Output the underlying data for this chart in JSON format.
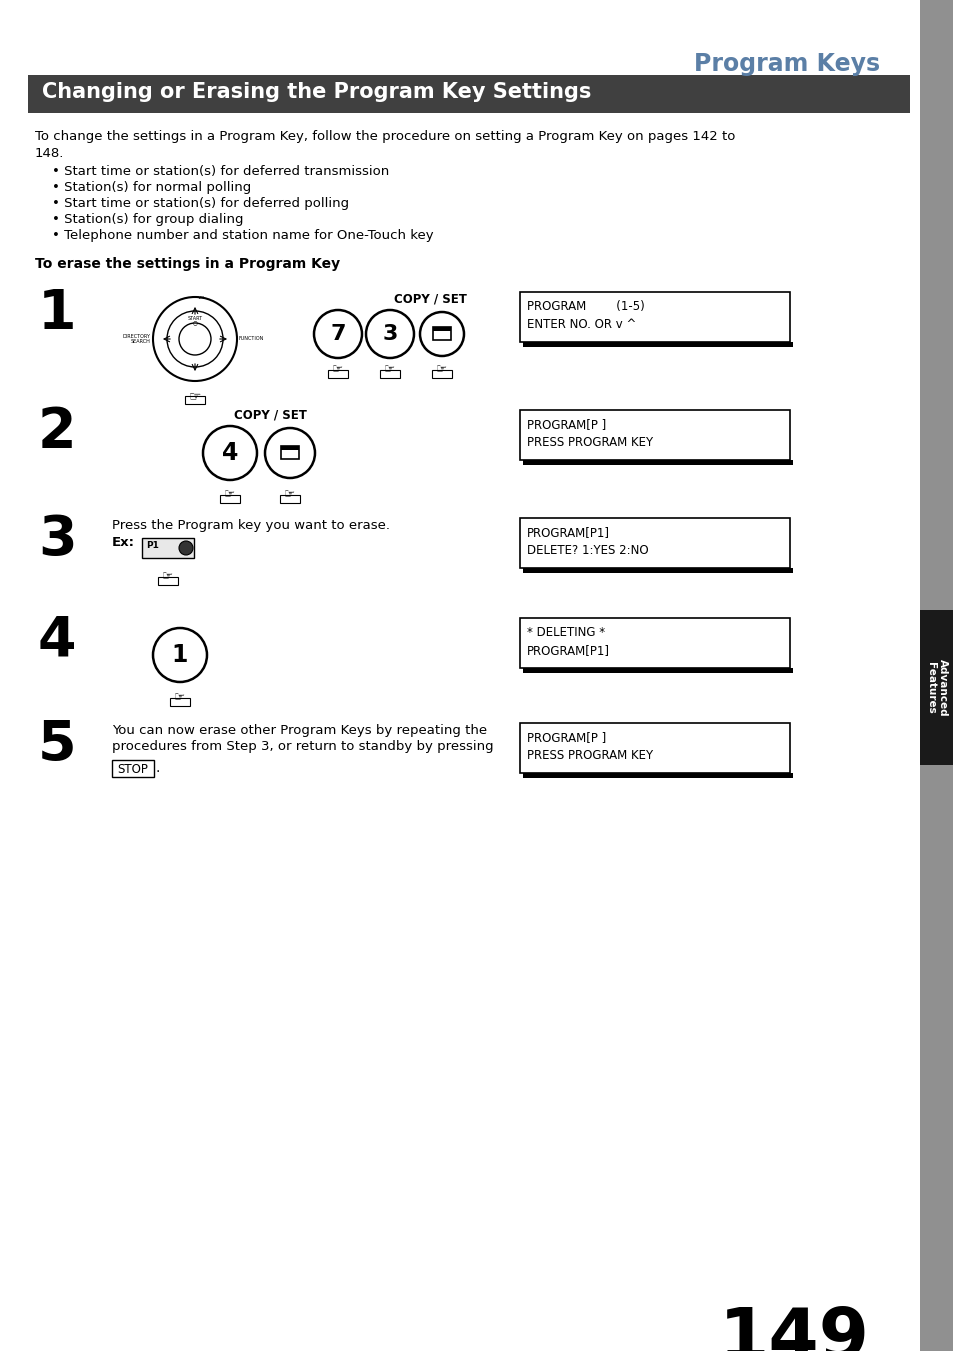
{
  "page_title": "Program Keys",
  "section_title": "Changing or Erasing the Program Key Settings",
  "intro_text_line1": "To change the settings in a Program Key, follow the procedure on setting a Program Key on pages 142 to",
  "intro_text_line2": "148.",
  "bullet_points": [
    "Start time or station(s) for deferred transmission",
    "Station(s) for normal polling",
    "Start time or station(s) for deferred polling",
    "Station(s) for group dialing",
    "Telephone number and station name for One-Touch key"
  ],
  "erase_header": "To erase the settings in a Program Key",
  "steps": [
    {
      "num": "1",
      "display_line1": "PROGRAM        (1-5)",
      "display_line2": "ENTER NO. OR v ^"
    },
    {
      "num": "2",
      "display_line1": "PROGRAM[P ]",
      "display_line2": "PRESS PROGRAM KEY"
    },
    {
      "num": "3",
      "display_line1": "PROGRAM[P1]",
      "display_line2": "DELETE? 1:YES 2:NO"
    },
    {
      "num": "4",
      "display_line1": "* DELETING *",
      "display_line2": "PROGRAM[P1]"
    },
    {
      "num": "5",
      "display_line1": "PROGRAM[P ]",
      "display_line2": "PRESS PROGRAM KEY"
    }
  ],
  "step1_copy_label": "COPY / SET",
  "step2_copy_label": "COPY / SET",
  "step3_text": "Press the Program key you want to erase.",
  "step3_ex": "Ex:",
  "step5_text1": "You can now erase other Program Keys by repeating the",
  "step5_text2": "procedures from Step 3, or return to standby by pressing",
  "step5_stop": "STOP",
  "page_number": "149",
  "sidebar_text": "Advanced\nFeatures",
  "title_color": "#5b7fa6",
  "section_bg": "#404040",
  "section_fg": "#ffffff",
  "sidebar_gray": "#909090",
  "sidebar_black_bg": "#1a1a1a",
  "page_bg": "#ffffff"
}
